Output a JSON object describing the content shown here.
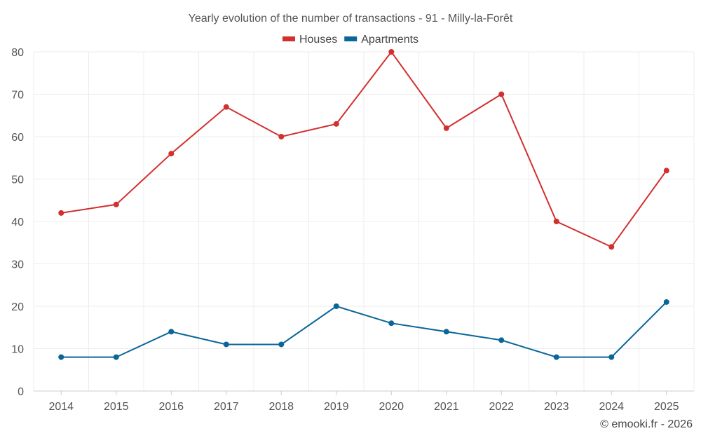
{
  "chart_data": {
    "type": "line",
    "title": "Yearly evolution of the number of transactions - 91 - Milly-la-Forêt",
    "categories": [
      "2014",
      "2015",
      "2016",
      "2017",
      "2018",
      "2019",
      "2020",
      "2021",
      "2022",
      "2023",
      "2024",
      "2025"
    ],
    "series": [
      {
        "name": "Houses",
        "color": "#d32f2f",
        "values": [
          42,
          44,
          56,
          67,
          60,
          63,
          80,
          62,
          70,
          40,
          34,
          52
        ]
      },
      {
        "name": "Apartments",
        "color": "#0a6699",
        "values": [
          8,
          8,
          14,
          11,
          11,
          20,
          16,
          14,
          12,
          8,
          8,
          21
        ]
      }
    ],
    "yticks": [
      0,
      10,
      20,
      30,
      40,
      50,
      60,
      70,
      80
    ],
    "ylim": [
      0,
      80
    ],
    "grid": true,
    "legend": "top-center",
    "xlabel": "",
    "ylabel": ""
  },
  "credit": "© emooki.fr - 2026"
}
